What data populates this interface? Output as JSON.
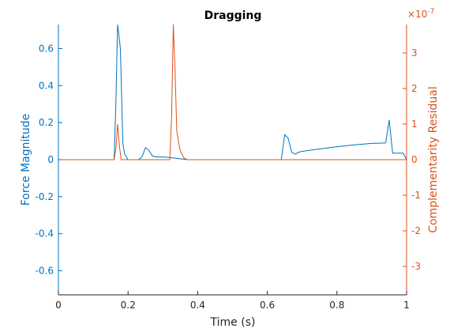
{
  "chart_data": {
    "type": "line",
    "title": "Dragging",
    "xlabel": "Time (s)",
    "ylabel_left": "Force Magnitude",
    "ylabel_right": "Complementarity Residual",
    "right_exponent_label": "×10",
    "right_exponent_power": "-7",
    "xlim": [
      0,
      1
    ],
    "ylim_left": [
      -0.73,
      0.73
    ],
    "ylim_right": [
      -3.8,
      3.8
    ],
    "x_ticks": [
      0,
      0.2,
      0.4,
      0.6,
      0.8,
      1
    ],
    "x_tick_labels": [
      "0",
      "0.2",
      "0.4",
      "0.6",
      "0.8",
      "1"
    ],
    "y_left_ticks": [
      -0.6,
      -0.4,
      -0.2,
      0,
      0.2,
      0.4,
      0.6
    ],
    "y_left_tick_labels": [
      "-0.6",
      "-0.4",
      "-0.2",
      "0",
      "0.2",
      "0.4",
      "0.6"
    ],
    "y_right_ticks": [
      -3,
      -2,
      -1,
      0,
      1,
      2,
      3
    ],
    "y_right_tick_labels": [
      "-3",
      "-2",
      "-1",
      "0",
      "1",
      "2",
      "3"
    ],
    "grid": false,
    "colors": {
      "left": "#0072BD",
      "right": "#D95319"
    },
    "series": [
      {
        "name": "Force Magnitude",
        "axis": "left",
        "x": [
          0,
          0.16,
          0.165,
          0.17,
          0.178,
          0.185,
          0.19,
          0.2,
          0.23,
          0.24,
          0.25,
          0.26,
          0.27,
          0.28,
          0.3,
          0.32,
          0.325,
          0.35,
          0.37,
          0.38,
          0.5,
          0.64,
          0.65,
          0.66,
          0.67,
          0.68,
          0.69,
          0.7,
          0.75,
          0.8,
          0.85,
          0.9,
          0.94,
          0.95,
          0.96,
          0.98,
          0.99,
          1
        ],
        "y": [
          0,
          0,
          0.3,
          0.73,
          0.6,
          0.09,
          0.03,
          0,
          0,
          0.015,
          0.065,
          0.05,
          0.02,
          0.015,
          0.015,
          0.012,
          0.01,
          0.005,
          0,
          0,
          0,
          0,
          0.135,
          0.115,
          0.04,
          0.03,
          0.04,
          0.045,
          0.058,
          0.07,
          0.08,
          0.088,
          0.09,
          0.215,
          0.035,
          0.035,
          0.035,
          0
        ]
      },
      {
        "name": "Complementarity Residual",
        "axis": "right",
        "x": [
          0,
          0.16,
          0.165,
          0.17,
          0.175,
          0.18,
          0.3,
          0.32,
          0.325,
          0.33,
          0.335,
          0.34,
          0.345,
          0.35,
          0.36,
          0.37,
          1
        ],
        "y": [
          0,
          0,
          0.3,
          1.0,
          0.4,
          0,
          0,
          0,
          1.2,
          3.8,
          2.5,
          0.8,
          0.5,
          0.25,
          0.05,
          0,
          0
        ]
      }
    ]
  }
}
